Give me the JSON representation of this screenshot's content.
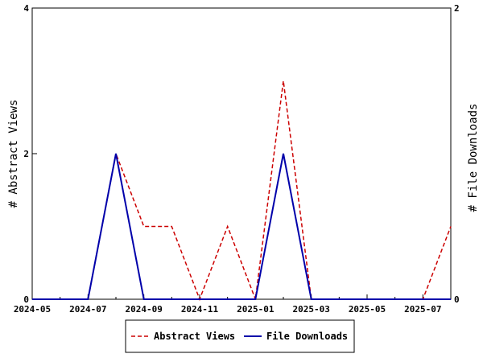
{
  "chart_data": {
    "type": "line",
    "title": "",
    "ylabel_left": "# Abstract Views",
    "ylabel_right": "# File Downloads",
    "ylim_left": [
      0,
      4
    ],
    "ylim_right": [
      0,
      2
    ],
    "yticks_left": [
      "0",
      "2",
      "4"
    ],
    "yticks_right": [
      "0",
      "2"
    ],
    "xlim": [
      "2024-05",
      "2025-08"
    ],
    "xtick_labels": [
      "2024-05",
      "2024-07",
      "2024-09",
      "2024-11",
      "2025-01",
      "2025-03",
      "2025-05",
      "2025-07"
    ],
    "x": [
      "2024-05",
      "2024-06",
      "2024-07",
      "2024-08",
      "2024-09",
      "2024-10",
      "2024-11",
      "2024-12",
      "2025-01",
      "2025-02",
      "2025-03",
      "2025-04",
      "2025-05",
      "2025-06",
      "2025-07",
      "2025-08"
    ],
    "series": [
      {
        "name": "Abstract Views",
        "axis": "left",
        "color": "#cc0000",
        "style": "dashed",
        "values": [
          0,
          0,
          0,
          2,
          1,
          1,
          0,
          1,
          0,
          3,
          0,
          0,
          0,
          0,
          0,
          1
        ]
      },
      {
        "name": "File Downloads",
        "axis": "right",
        "color": "#0000aa",
        "style": "solid",
        "values": [
          0,
          0,
          0,
          1,
          0,
          0,
          0,
          0,
          0,
          1,
          0,
          0,
          0,
          0,
          0,
          0
        ]
      }
    ],
    "legend_position": "bottom-center",
    "grid": false
  }
}
